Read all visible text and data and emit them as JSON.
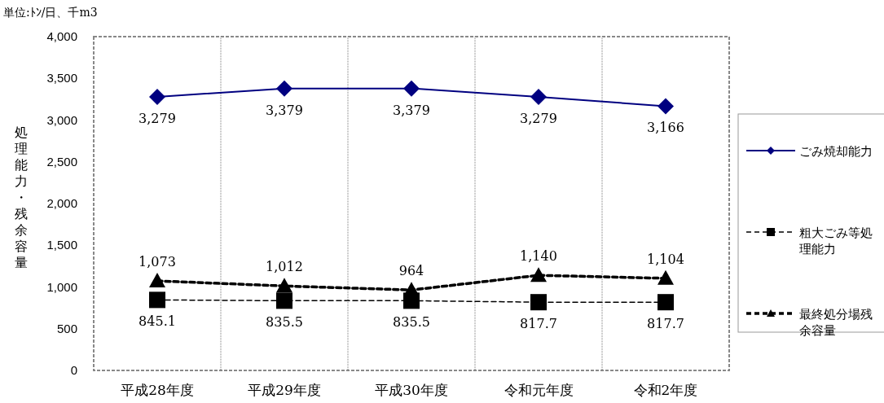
{
  "chart_data": {
    "type": "line",
    "categories": [
      "平成28年度",
      "平成29年度",
      "平成30年度",
      "令和元年度",
      "令和2年度"
    ],
    "series": [
      {
        "name": "ごみ焼却能力",
        "color": "#000080",
        "marker": "diamond",
        "line_style": "solid",
        "values": [
          3279,
          3379,
          3379,
          3279,
          3166
        ],
        "value_labels": [
          "3,279",
          "3,379",
          "3,379",
          "3,279",
          "3,166"
        ]
      },
      {
        "name": "粗大ごみ等処理能力",
        "color": "#000000",
        "marker": "square",
        "line_style": "dashed",
        "values": [
          845.1,
          835.5,
          835.5,
          817.7,
          817.7
        ],
        "value_labels": [
          "845.1",
          "835.5",
          "835.5",
          "817.7",
          "817.7"
        ]
      },
      {
        "name": "最終処分場残余容量",
        "color": "#000000",
        "marker": "triangle",
        "line_style": "dashed",
        "values": [
          1073,
          1012,
          964,
          1140,
          1104
        ],
        "value_labels": [
          "1,073",
          "1,012",
          "964",
          "1,140",
          "1,104"
        ]
      }
    ],
    "ylabel": "処理能力・残余容量",
    "ylim": [
      0,
      4000
    ],
    "yticks": [
      0,
      500,
      {
        "value": 1000,
        "label": "1,000"
      },
      {
        "value": 1500,
        "label": "1,500"
      },
      {
        "value": 2000,
        "label": "2,000"
      },
      {
        "value": 2500,
        "label": "2,500"
      },
      {
        "value": 3000,
        "label": "3,000"
      },
      {
        "value": 3500,
        "label": "3,500"
      },
      {
        "value": 4000,
        "label": "4,000"
      }
    ],
    "grid": "x",
    "legend": "right",
    "annotations": [
      "単位:ﾄﾝ/日、千m3"
    ]
  }
}
